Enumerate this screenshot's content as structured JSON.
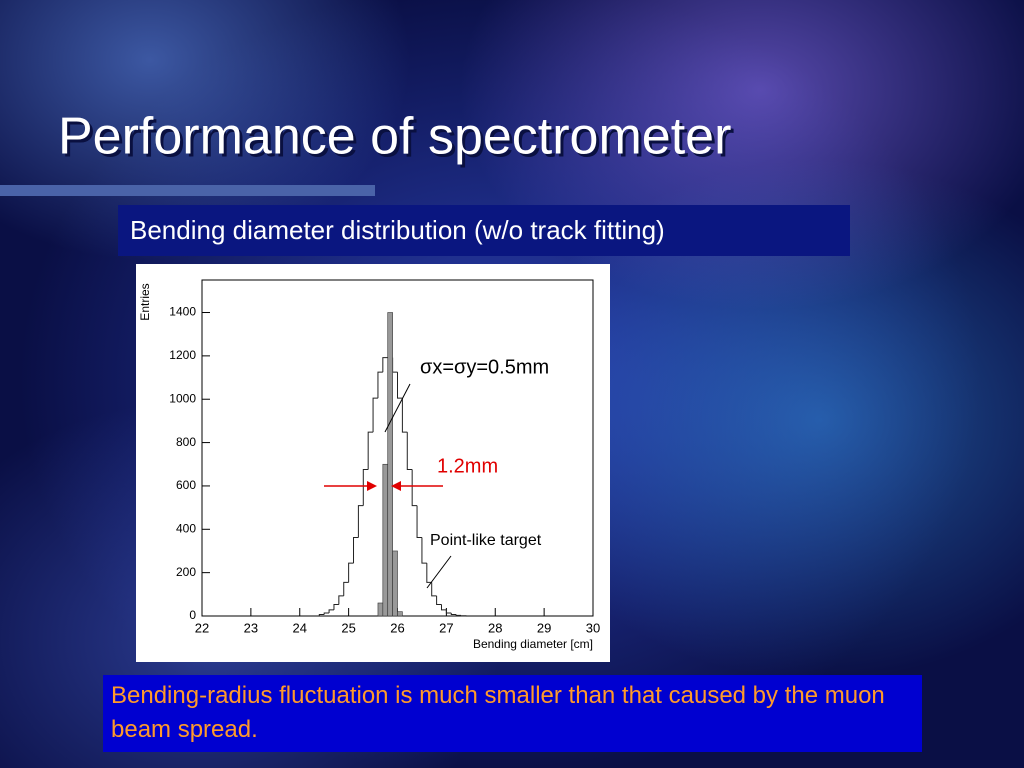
{
  "slide": {
    "title": "Performance of spectrometer",
    "subtitle": "Bending diameter distribution (w/o track fitting)",
    "note": "Bending-radius fluctuation is much smaller than that caused by the muon beam spread."
  },
  "chart_data": {
    "type": "histogram",
    "xlabel": "Bending diameter [cm]",
    "ylabel": "Entries",
    "xlim": [
      22,
      30
    ],
    "ylim": [
      0,
      1550
    ],
    "xticks": [
      22,
      23,
      24,
      25,
      26,
      27,
      28,
      29,
      30
    ],
    "yticks": [
      0,
      200,
      400,
      600,
      800,
      1000,
      1200,
      1400
    ],
    "bins": [
      24.4,
      24.5,
      24.6,
      24.7,
      24.8,
      24.9,
      25.0,
      25.1,
      25.2,
      25.3,
      25.4,
      25.5,
      25.6,
      25.7,
      25.8,
      25.9,
      26.0,
      26.1,
      26.2,
      26.3,
      26.4,
      26.5,
      26.6,
      26.7,
      26.8,
      26.9,
      27.0,
      27.1,
      27.2,
      27.3,
      27.4
    ],
    "series": [
      {
        "name": "σx=σy=0.5mm",
        "color": "#222222",
        "values": [
          7,
          14,
          28,
          53,
          93,
          155,
          244,
          362,
          509,
          676,
          848,
          1005,
          1125,
          1192,
          1192,
          1125,
          1005,
          848,
          676,
          509,
          362,
          244,
          155,
          93,
          53,
          28,
          14,
          7,
          3,
          1
        ]
      },
      {
        "name": "Point-like target",
        "color": "#999999",
        "values": [
          0,
          0,
          0,
          0,
          0,
          0,
          0,
          0,
          0,
          0,
          0,
          0,
          60,
          700,
          1400,
          300,
          20,
          0,
          0,
          0,
          0,
          0,
          0,
          0,
          0,
          0,
          0,
          0,
          0,
          0
        ]
      }
    ],
    "annotations": [
      "1.2mm"
    ]
  }
}
